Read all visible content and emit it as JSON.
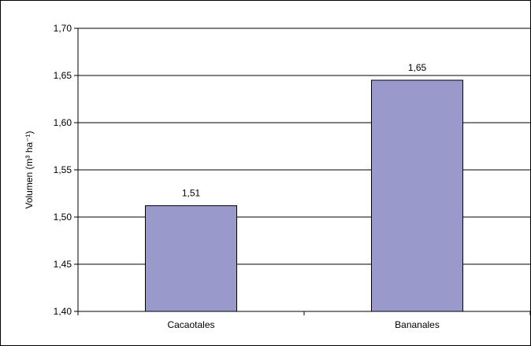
{
  "chart_data": {
    "type": "bar",
    "categories": [
      "Cacaotales",
      "Bananales"
    ],
    "values": [
      1.512,
      1.645
    ],
    "data_labels": [
      "1,51",
      "1,65"
    ],
    "ylabel": "Volumen (m³ ha⁻¹)",
    "xlabel": "",
    "title": "",
    "ylim": [
      1.4,
      1.7
    ],
    "y_ticks": [
      1.4,
      1.45,
      1.5,
      1.55,
      1.6,
      1.65,
      1.7
    ],
    "y_tick_labels": [
      "1,40",
      "1,45",
      "1,50",
      "1,55",
      "1,60",
      "1,65",
      "1,70"
    ],
    "grid": true,
    "legend": "none",
    "bar_color": "#9999cc"
  }
}
